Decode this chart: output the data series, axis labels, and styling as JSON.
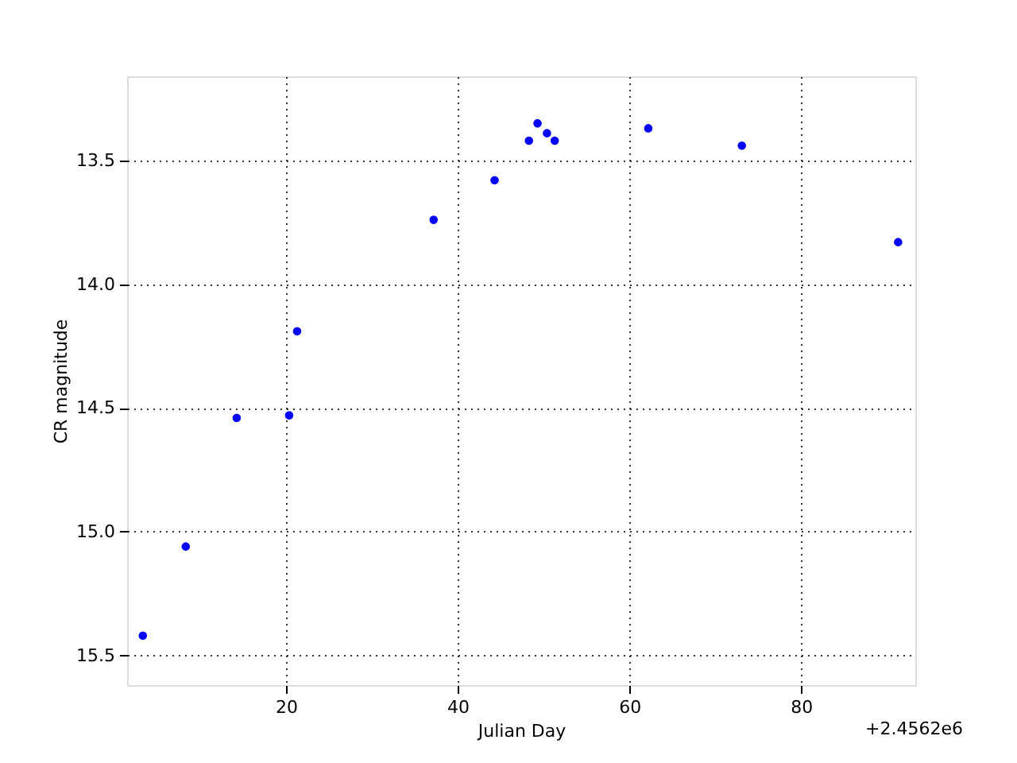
{
  "chart_data": {
    "type": "scatter",
    "xlabel": "Julian Day",
    "ylabel": "CR magnitude",
    "annotations": [
      "+2.4562e6"
    ],
    "x": [
      3.33,
      8.33,
      14.26,
      20.37,
      21.3,
      37.2,
      44.3,
      48.3,
      49.3,
      50.4,
      51.3,
      62.2,
      73.1,
      91.3
    ],
    "series": [
      {
        "color": "#0000ff",
        "values": [
          15.42,
          15.06,
          14.54,
          14.53,
          14.19,
          13.74,
          13.58,
          13.42,
          13.35,
          13.39,
          13.42,
          13.37,
          13.44,
          13.83
        ]
      }
    ],
    "xlim": [
      1.5,
      93.3
    ],
    "ylim": [
      15.62,
      13.16
    ],
    "xticks": [
      20,
      40,
      60,
      80
    ],
    "yticks": [
      {
        "value": 13.5,
        "label": "13.5"
      },
      {
        "value": 14,
        "label": "14.0"
      },
      {
        "value": 14.5,
        "label": "14.5"
      },
      {
        "value": 15,
        "label": "15.0"
      },
      {
        "value": 15.5,
        "label": "15.5"
      }
    ],
    "grid": true,
    "marker": "circle"
  }
}
